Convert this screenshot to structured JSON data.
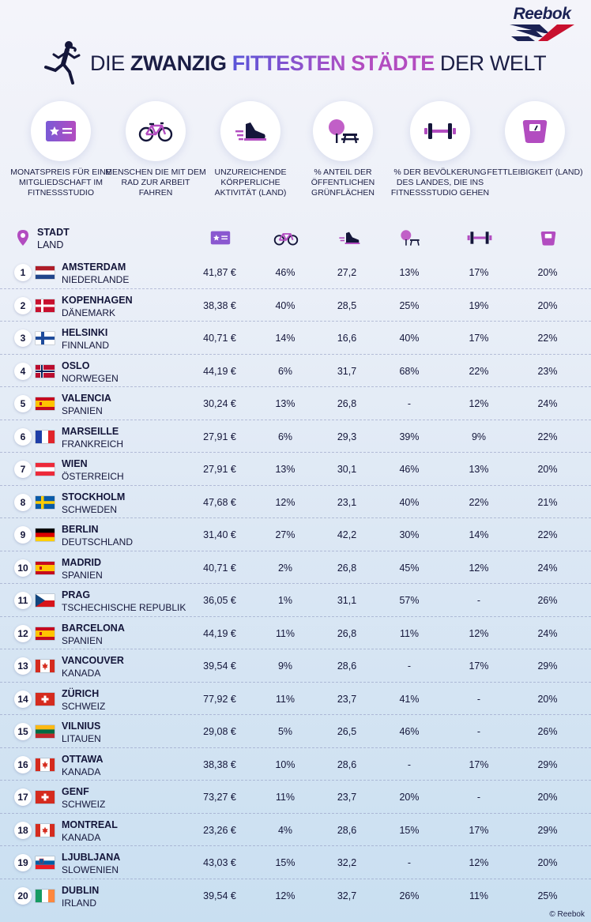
{
  "brand": {
    "name": "Reebok",
    "color": "#1b2254",
    "accent": "#c8102e"
  },
  "title": {
    "part1": "DIE ",
    "part2": "ZWANZIG ",
    "part3": "FITTESTEN ",
    "part4": "STÄDTE ",
    "part5": "DER WELT"
  },
  "categories": [
    {
      "icon": "membership-card-icon",
      "label": "MONATSPREIS FÜR EINE MITGLIEDSCHAFT IM FITNESSSTUDIO"
    },
    {
      "icon": "bicycle-icon",
      "label": "MENSCHEN DIE MIT DEM RAD ZUR ARBEIT FAHREN"
    },
    {
      "icon": "sneaker-icon",
      "label": "UNZUREICHENDE KÖRPERLICHE AKTIVITÄT (LAND)"
    },
    {
      "icon": "park-tree-icon",
      "label": "% ANTEIL DER ÖFFENTLICHEN GRÜNFLÄCHEN"
    },
    {
      "icon": "dumbbell-icon",
      "label": "% DER BEVÖLKERUNG DES LANDES, DIE INS FITNESSSTUDIO GEHEN"
    },
    {
      "icon": "scale-icon",
      "label": "FETTLEIBIGKEIT (LAND)"
    }
  ],
  "table_header": {
    "city": "STADT",
    "country": "LAND"
  },
  "rows": [
    {
      "rank": "1",
      "city": "AMSTERDAM",
      "country": "NIEDERLANDE",
      "flag": "nl",
      "price": "41,87 €",
      "bike": "46%",
      "inactivity": "27,2",
      "green": "13%",
      "gym": "17%",
      "obesity": "20%"
    },
    {
      "rank": "2",
      "city": "KOPENHAGEN",
      "country": "DÄNEMARK",
      "flag": "dk",
      "price": "38,38 €",
      "bike": "40%",
      "inactivity": "28,5",
      "green": "25%",
      "gym": "19%",
      "obesity": "20%"
    },
    {
      "rank": "3",
      "city": "HELSINKI",
      "country": "FINNLAND",
      "flag": "fi",
      "price": "40,71 €",
      "bike": "14%",
      "inactivity": "16,6",
      "green": "40%",
      "gym": "17%",
      "obesity": "22%"
    },
    {
      "rank": "4",
      "city": "OSLO",
      "country": "NORWEGEN",
      "flag": "no",
      "price": "44,19 €",
      "bike": "6%",
      "inactivity": "31,7",
      "green": "68%",
      "gym": "22%",
      "obesity": "23%"
    },
    {
      "rank": "5",
      "city": "VALENCIA",
      "country": "SPANIEN",
      "flag": "es",
      "price": "30,24 €",
      "bike": "13%",
      "inactivity": "26,8",
      "green": "-",
      "gym": "12%",
      "obesity": "24%"
    },
    {
      "rank": "6",
      "city": "MARSEILLE",
      "country": "FRANKREICH",
      "flag": "fr",
      "price": "27,91 €",
      "bike": "6%",
      "inactivity": "29,3",
      "green": "39%",
      "gym": "9%",
      "obesity": "22%"
    },
    {
      "rank": "7",
      "city": "WIEN",
      "country": "ÖSTERREICH",
      "flag": "at",
      "price": "27,91 €",
      "bike": "13%",
      "inactivity": "30,1",
      "green": "46%",
      "gym": "13%",
      "obesity": "20%"
    },
    {
      "rank": "8",
      "city": "STOCKHOLM",
      "country": "SCHWEDEN",
      "flag": "se",
      "price": "47,68 €",
      "bike": "12%",
      "inactivity": "23,1",
      "green": "40%",
      "gym": "22%",
      "obesity": "21%"
    },
    {
      "rank": "9",
      "city": "BERLIN",
      "country": "DEUTSCHLAND",
      "flag": "de",
      "price": "31,40 €",
      "bike": "27%",
      "inactivity": "42,2",
      "green": "30%",
      "gym": "14%",
      "obesity": "22%"
    },
    {
      "rank": "10",
      "city": "MADRID",
      "country": "SPANIEN",
      "flag": "es",
      "price": "40,71 €",
      "bike": "2%",
      "inactivity": "26,8",
      "green": "45%",
      "gym": "12%",
      "obesity": "24%"
    },
    {
      "rank": "11",
      "city": "PRAG",
      "country": "TSCHECHISCHE REPUBLIK",
      "flag": "cz",
      "price": "36,05 €",
      "bike": "1%",
      "inactivity": "31,1",
      "green": "57%",
      "gym": "-",
      "obesity": "26%"
    },
    {
      "rank": "12",
      "city": "BARCELONA",
      "country": "SPANIEN",
      "flag": "es",
      "price": "44,19 €",
      "bike": "11%",
      "inactivity": "26,8",
      "green": "11%",
      "gym": "12%",
      "obesity": "24%"
    },
    {
      "rank": "13",
      "city": "VANCOUVER",
      "country": "KANADA",
      "flag": "ca",
      "price": "39,54 €",
      "bike": "9%",
      "inactivity": "28,6",
      "green": "-",
      "gym": "17%",
      "obesity": "29%"
    },
    {
      "rank": "14",
      "city": "ZÜRICH",
      "country": "SCHWEIZ",
      "flag": "ch",
      "price": "77,92 €",
      "bike": "11%",
      "inactivity": "23,7",
      "green": "41%",
      "gym": "-",
      "obesity": "20%"
    },
    {
      "rank": "15",
      "city": "VILNIUS",
      "country": "LITAUEN",
      "flag": "lt",
      "price": "29,08 €",
      "bike": "5%",
      "inactivity": "26,5",
      "green": "46%",
      "gym": "-",
      "obesity": "26%"
    },
    {
      "rank": "16",
      "city": "OTTAWA",
      "country": "KANADA",
      "flag": "ca",
      "price": "38,38 €",
      "bike": "10%",
      "inactivity": "28,6",
      "green": "-",
      "gym": "17%",
      "obesity": "29%"
    },
    {
      "rank": "17",
      "city": "GENF",
      "country": "SCHWEIZ",
      "flag": "ch",
      "price": "73,27 €",
      "bike": "11%",
      "inactivity": "23,7",
      "green": "20%",
      "gym": "-",
      "obesity": "20%"
    },
    {
      "rank": "18",
      "city": "MONTREAL",
      "country": "KANADA",
      "flag": "ca",
      "price": "23,26 €",
      "bike": "4%",
      "inactivity": "28,6",
      "green": "15%",
      "gym": "17%",
      "obesity": "29%"
    },
    {
      "rank": "19",
      "city": "LJUBLJANA",
      "country": "SLOWENIEN",
      "flag": "si",
      "price": "43,03 €",
      "bike": "15%",
      "inactivity": "32,2",
      "green": "-",
      "gym": "12%",
      "obesity": "20%"
    },
    {
      "rank": "20",
      "city": "DUBLIN",
      "country": "IRLAND",
      "flag": "ie",
      "price": "39,54 €",
      "bike": "12%",
      "inactivity": "32,7",
      "green": "26%",
      "gym": "11%",
      "obesity": "25%"
    }
  ],
  "footer": {
    "copyright": "© Reebok"
  },
  "colors": {
    "purple": "#b24cc0",
    "indigo": "#5a55d8",
    "navy": "#14163a"
  }
}
